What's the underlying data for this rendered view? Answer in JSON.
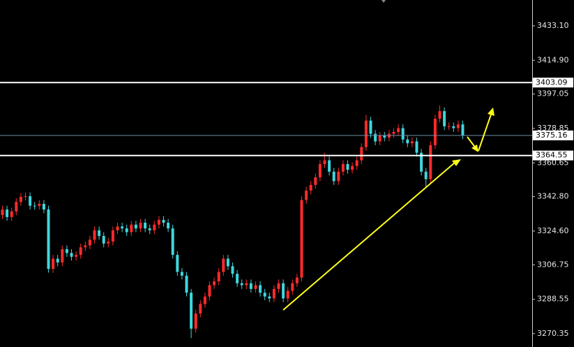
{
  "chart_data": {
    "type": "candlestick",
    "up_color": "#ff2b2b",
    "down_color": "#3fd6dc",
    "open": [
      3333,
      3336,
      3332,
      3335,
      3340,
      3342.7,
      3343,
      3338,
      3337.9,
      3339,
      3336,
      3304.6,
      3310,
      3308,
      3315,
      3313,
      3311,
      3312,
      3316,
      3317,
      3320,
      3325,
      3322,
      3318,
      3319,
      3325,
      3327,
      3326,
      3324,
      3328,
      3326,
      3329,
      3326,
      3325,
      3328,
      3330.5,
      3329,
      3326,
      3312,
      3303,
      3301,
      3292,
      3273,
      3281,
      3286,
      3290,
      3296,
      3298,
      3303,
      3310,
      3306,
      3302,
      3297,
      3296,
      3297,
      3294,
      3296,
      3292,
      3290,
      3289,
      3294,
      3297,
      3289,
      3293,
      3297,
      3300,
      3341,
      3346,
      3349,
      3353,
      3360,
      3362,
      3356,
      3351,
      3356,
      3360,
      3357,
      3359,
      3362,
      3369,
      3383,
      3376,
      3372,
      3375,
      3374,
      3376,
      3377,
      3379,
      3373,
      3371,
      3372,
      3366,
      3356,
      3352,
      3370,
      3384,
      3388,
      3380,
      3380,
      3379,
      3381
    ],
    "high": [
      3338,
      3338,
      3337,
      3342,
      3344.7,
      3345,
      3345,
      3340,
      3341,
      3341,
      3338,
      3312,
      3312,
      3317,
      3317,
      3315,
      3314,
      3318,
      3319,
      3322,
      3327,
      3327,
      3324,
      3321,
      3327,
      3329,
      3329,
      3328,
      3330,
      3330,
      3331,
      3331,
      3328,
      3330,
      3332.5,
      3332.5,
      3331,
      3328,
      3314,
      3305,
      3303,
      3294,
      3283,
      3288,
      3292,
      3298,
      3300,
      3305,
      3312,
      3312,
      3308,
      3304,
      3299,
      3299,
      3299,
      3298,
      3298,
      3294,
      3292,
      3296,
      3299,
      3299,
      3295,
      3299,
      3302,
      3343,
      3348,
      3351,
      3355,
      3362,
      3366,
      3364,
      3358,
      3358,
      3362,
      3362,
      3361,
      3364,
      3371,
      3386,
      3385,
      3378,
      3377,
      3377,
      3378,
      3379,
      3381,
      3381,
      3375,
      3374,
      3374,
      3368,
      3358,
      3372,
      3386,
      3391,
      3390,
      3382,
      3382,
      3383,
      3383
    ],
    "low": [
      3331,
      3330,
      3330,
      3333,
      3338,
      3340.7,
      3336,
      3335.9,
      3335.9,
      3334,
      3302.6,
      3302.6,
      3306,
      3306,
      3311,
      3309,
      3309,
      3310,
      3314,
      3315,
      3318,
      3320,
      3316,
      3316,
      3317,
      3323,
      3324,
      3322,
      3322,
      3324,
      3324,
      3324,
      3323,
      3323,
      3326,
      3327,
      3324,
      3310,
      3301,
      3299,
      3290,
      3268,
      3271,
      3279,
      3284,
      3288,
      3294,
      3296,
      3301,
      3304,
      3300,
      3295,
      3294,
      3294,
      3292,
      3292,
      3290,
      3288,
      3287,
      3287,
      3292,
      3287,
      3287,
      3291,
      3295,
      3298,
      3339,
      3344,
      3347,
      3351,
      3358,
      3354,
      3349,
      3349,
      3354,
      3355,
      3355,
      3357,
      3360,
      3367,
      3374,
      3370,
      3370,
      3372,
      3372,
      3374,
      3375,
      3371,
      3369,
      3369,
      3364,
      3354,
      3348,
      3350,
      3368,
      3382,
      3378,
      3378,
      3377,
      3377,
      3373.16
    ],
    "close": [
      3336,
      3332,
      3335,
      3340,
      3342.7,
      3343,
      3338,
      3337.9,
      3339,
      3336,
      3304.6,
      3310,
      3308,
      3315,
      3313,
      3311,
      3312,
      3316,
      3317,
      3320,
      3325,
      3322,
      3318,
      3319,
      3325,
      3327,
      3326,
      3324,
      3328,
      3326,
      3329,
      3326,
      3325,
      3328,
      3330.5,
      3329,
      3326,
      3312,
      3303,
      3301,
      3292,
      3273,
      3281,
      3286,
      3290,
      3296,
      3298,
      3303,
      3310,
      3306,
      3302,
      3297,
      3296,
      3297,
      3294,
      3296,
      3292,
      3290,
      3289,
      3294,
      3297,
      3289,
      3293,
      3297,
      3300,
      3341,
      3346,
      3349,
      3353,
      3360,
      3362,
      3356,
      3351,
      3356,
      3360,
      3357,
      3359,
      3362,
      3369,
      3383,
      3376,
      3372,
      3375,
      3374,
      3376,
      3377,
      3379,
      3373,
      3371,
      3372,
      3366,
      3356,
      3352,
      3370,
      3384,
      3388,
      3380,
      3380,
      3379,
      3381,
      3375.16
    ],
    "ylim": [
      3263.3,
      3446.75
    ],
    "yticks": [
      {
        "value": 3433.1,
        "label": "3433.10"
      },
      {
        "value": 3414.9,
        "label": "3414.90"
      },
      3397.05,
      3378.85,
      3360.65,
      {
        "value": 3342.8,
        "label": "3342.80"
      },
      {
        "value": 3324.6,
        "label": "3324.60"
      },
      3306.75,
      3288.55,
      3270.35
    ],
    "levels": [
      {
        "value": 3403.09,
        "color": "#ffffff",
        "width": 2
      },
      {
        "value": 3375.16,
        "color": "#6f8fa8",
        "width": 1
      },
      {
        "value": 3364.55,
        "color": "#ffffff",
        "width": 2
      }
    ]
  }
}
